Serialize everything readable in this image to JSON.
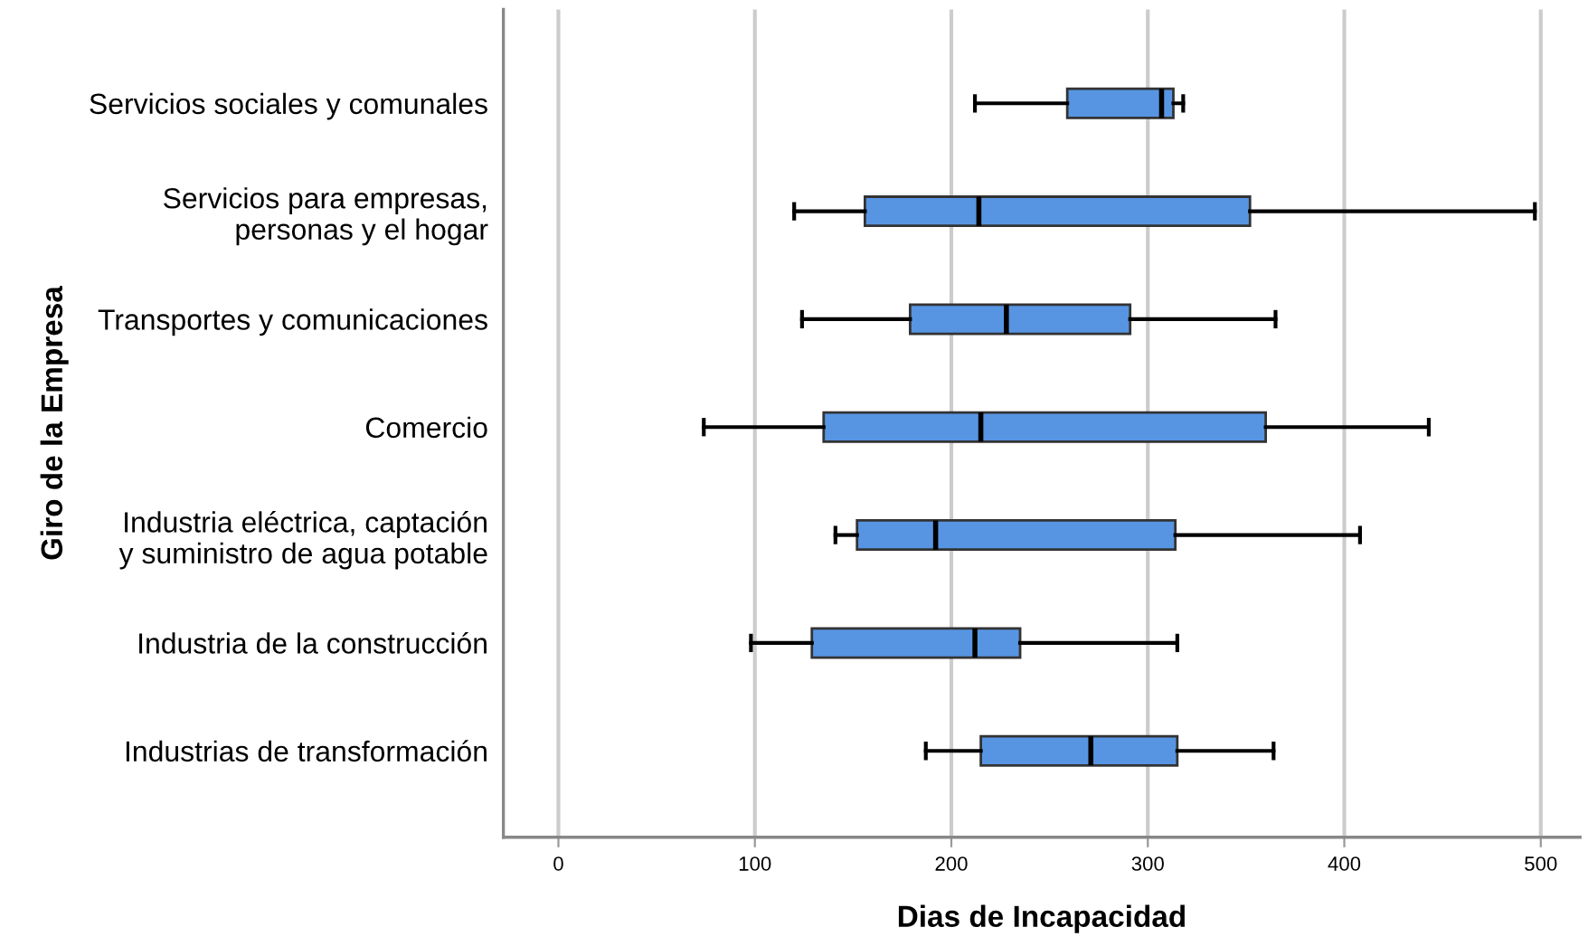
{
  "chart_data": {
    "type": "box",
    "orientation": "horizontal",
    "xlabel": "Dias de Incapacidad",
    "ylabel": "Giro de la Empresa",
    "categories": [
      "Servicios sociales y comunales",
      "Servicios para empresas,\npersonas y el hogar",
      "Transportes y comunicaciones",
      "Comercio",
      "Industria eléctrica, captación\ny suministro de agua potable",
      "Industria de la construcción",
      "Industrias de transformación"
    ],
    "color": "#5795e3",
    "boxes": [
      {
        "low": 212,
        "q1": 259,
        "median": 307,
        "q3": 313,
        "high": 318
      },
      {
        "low": 120,
        "q1": 156,
        "median": 214,
        "q3": 352,
        "high": 497
      },
      {
        "low": 124,
        "q1": 179,
        "median": 228,
        "q3": 291,
        "high": 365
      },
      {
        "low": 74,
        "q1": 135,
        "median": 215,
        "q3": 360,
        "high": 443
      },
      {
        "low": 141,
        "q1": 152,
        "median": 192,
        "q3": 314,
        "high": 408
      },
      {
        "low": 98,
        "q1": 129,
        "median": 212,
        "q3": 235,
        "high": 315
      },
      {
        "low": 187,
        "q1": 215,
        "median": 271,
        "q3": 315,
        "high": 364
      }
    ],
    "xlim": [
      -28,
      520
    ],
    "xticks": [
      0,
      100,
      200,
      300,
      400,
      500
    ],
    "grid": "x"
  }
}
